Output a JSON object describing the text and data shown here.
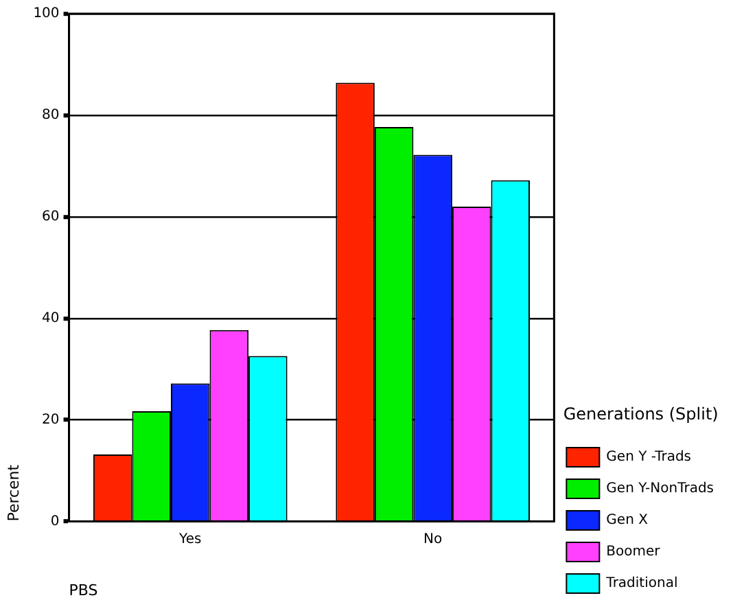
{
  "chart_data": {
    "type": "bar",
    "xlabel": "PBS",
    "ylabel": "Percent",
    "legend_title": "Generations (Split)",
    "categories": [
      "Yes",
      "No"
    ],
    "series": [
      {
        "name": "Gen Y -Trads",
        "color": "#ff2400",
        "values": [
          13.2,
          86.4
        ]
      },
      {
        "name": "Gen Y-NonTrads",
        "color": "#00ee00",
        "values": [
          21.7,
          77.7
        ]
      },
      {
        "name": "Gen X",
        "color": "#0a28ff",
        "values": [
          27.2,
          72.2
        ]
      },
      {
        "name": "Boomer",
        "color": "#ff40ff",
        "values": [
          37.7,
          62.0
        ]
      },
      {
        "name": "Traditional",
        "color": "#00ffff",
        "values": [
          32.6,
          67.2
        ]
      }
    ],
    "ylim": [
      0,
      100
    ],
    "yticks": [
      0,
      20,
      40,
      60,
      80,
      100
    ],
    "grid": "y",
    "legend": "right"
  }
}
